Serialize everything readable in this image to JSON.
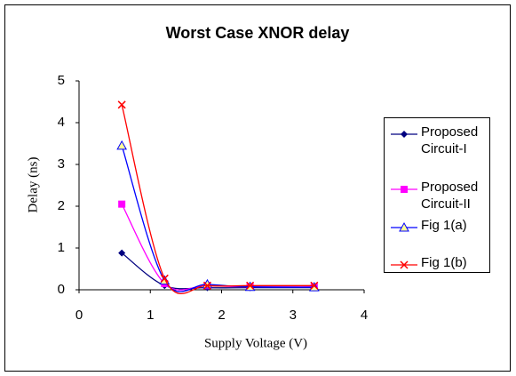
{
  "chart_data": {
    "type": "line",
    "title": "Worst Case XNOR delay",
    "x_label": "Supply Voltage (V)",
    "y_label": "Delay (ns)",
    "x": [
      0.6,
      1.2,
      1.8,
      2.4,
      3.3
    ],
    "series": [
      {
        "name": "Proposed Circuit-I",
        "color": "#000080",
        "marker": "diamond",
        "values": [
          0.88,
          0.1,
          0.05,
          0.05,
          0.05
        ]
      },
      {
        "name": "Proposed Circuit-II",
        "color": "#ff00ff",
        "marker": "square",
        "values": [
          2.05,
          0.15,
          0.1,
          0.07,
          0.07
        ]
      },
      {
        "name": "Fig 1(a)",
        "color": "#0000ff",
        "marker": "triangle",
        "values": [
          3.45,
          0.22,
          0.13,
          0.07,
          0.06
        ]
      },
      {
        "name": "Fig 1(b)",
        "color": "#ff0000",
        "marker": "x",
        "values": [
          4.43,
          0.27,
          0.1,
          0.1,
          0.1
        ]
      }
    ],
    "xlim": [
      0,
      4
    ],
    "xticks": [
      0,
      1,
      2,
      3,
      4
    ],
    "ylim": [
      0,
      5
    ],
    "yticks": [
      0,
      1,
      2,
      3,
      4,
      5
    ],
    "grid": false,
    "smooth": true,
    "legend": "right"
  }
}
